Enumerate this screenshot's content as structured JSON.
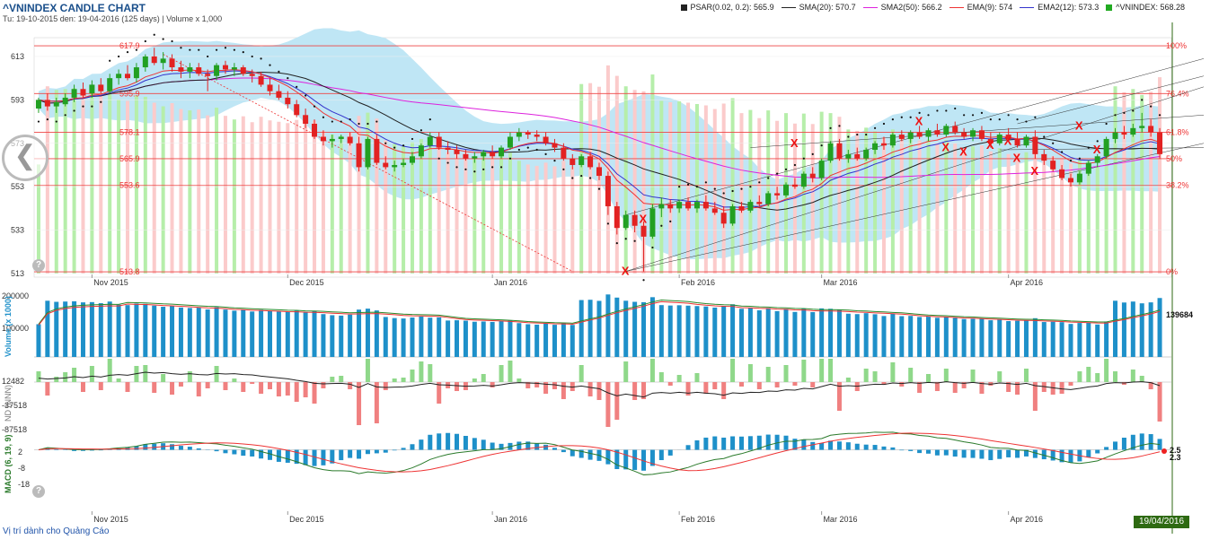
{
  "header": {
    "title": "^VNINDEX CANDLE CHART",
    "subtitle": "Tu: 19-10-2015 den: 19-04-2016 (125 days) | Volume x 1,000"
  },
  "legend": [
    {
      "name": "PSAR(0.02, 0.2): 565.9",
      "color": "#222222",
      "kind": "square"
    },
    {
      "name": "SMA(20): 570.7",
      "color": "#222222",
      "kind": "line"
    },
    {
      "name": "SMA2(50): 566.2",
      "color": "#dd22dd",
      "kind": "line"
    },
    {
      "name": "EMA(9): 574",
      "color": "#ee3333",
      "kind": "line"
    },
    {
      "name": "EMA2(12): 573.3",
      "color": "#3333cc",
      "kind": "line"
    },
    {
      "name": "^VNINDEX: 568.28",
      "color": "#22aa22",
      "kind": "square"
    }
  ],
  "footer": "Vị trí dành cho Quảng Cáo",
  "date_badge": "19/04/2016",
  "nav_glyph": "❮",
  "help_glyph": "?",
  "chart_data": [
    {
      "type": "candlestick",
      "name": "price",
      "y_ticks": [
        513,
        533,
        553,
        573,
        593,
        613
      ],
      "ylim": [
        513,
        620
      ],
      "x_ticks": [
        "Nov 2015",
        "Dec 2015",
        "Jan 2016",
        "Feb 2016",
        "Mar 2016",
        "Apr 2016"
      ],
      "fib_levels": [
        {
          "v": 617.9,
          "label": "617.9",
          "pct": "100%"
        },
        {
          "v": 595.9,
          "label": "595.9",
          "pct": "76.4%"
        },
        {
          "v": 578.1,
          "label": "578.1",
          "pct": "61.8%"
        },
        {
          "v": 565.9,
          "label": "565.9",
          "pct": "50%"
        },
        {
          "v": 553.6,
          "label": "553.6",
          "pct": "38.2%"
        },
        {
          "v": 513.8,
          "label": "513.8",
          "pct": "0%"
        }
      ],
      "candles": [
        {
          "o": 589,
          "h": 594,
          "l": 587,
          "c": 593
        },
        {
          "o": 593,
          "h": 596,
          "l": 588,
          "c": 590
        },
        {
          "o": 590,
          "h": 594,
          "l": 587,
          "c": 592
        },
        {
          "o": 591,
          "h": 596,
          "l": 590,
          "c": 594
        },
        {
          "o": 594,
          "h": 600,
          "l": 592,
          "c": 598
        },
        {
          "o": 598,
          "h": 601,
          "l": 594,
          "c": 595
        },
        {
          "o": 596,
          "h": 602,
          "l": 594,
          "c": 600
        },
        {
          "o": 600,
          "h": 603,
          "l": 596,
          "c": 597
        },
        {
          "o": 597,
          "h": 605,
          "l": 596,
          "c": 603
        },
        {
          "o": 603,
          "h": 607,
          "l": 600,
          "c": 605
        },
        {
          "o": 605,
          "h": 609,
          "l": 602,
          "c": 603
        },
        {
          "o": 603,
          "h": 610,
          "l": 601,
          "c": 608
        },
        {
          "o": 608,
          "h": 614,
          "l": 606,
          "c": 613
        },
        {
          "o": 613,
          "h": 617,
          "l": 609,
          "c": 610
        },
        {
          "o": 610,
          "h": 615,
          "l": 607,
          "c": 612
        },
        {
          "o": 612,
          "h": 614,
          "l": 606,
          "c": 608
        },
        {
          "o": 608,
          "h": 611,
          "l": 603,
          "c": 606
        },
        {
          "o": 606,
          "h": 610,
          "l": 603,
          "c": 608
        },
        {
          "o": 608,
          "h": 610,
          "l": 604,
          "c": 605
        },
        {
          "o": 605,
          "h": 607,
          "l": 597,
          "c": 604
        },
        {
          "o": 604,
          "h": 610,
          "l": 602,
          "c": 609
        },
        {
          "o": 609,
          "h": 611,
          "l": 605,
          "c": 607
        },
        {
          "o": 607,
          "h": 610,
          "l": 604,
          "c": 608
        },
        {
          "o": 608,
          "h": 609,
          "l": 604,
          "c": 605
        },
        {
          "o": 605,
          "h": 607,
          "l": 601,
          "c": 604
        },
        {
          "o": 604,
          "h": 606,
          "l": 599,
          "c": 600
        },
        {
          "o": 600,
          "h": 603,
          "l": 595,
          "c": 597
        },
        {
          "o": 597,
          "h": 600,
          "l": 593,
          "c": 594
        },
        {
          "o": 594,
          "h": 597,
          "l": 589,
          "c": 591
        },
        {
          "o": 591,
          "h": 593,
          "l": 585,
          "c": 586
        },
        {
          "o": 586,
          "h": 589,
          "l": 580,
          "c": 582
        },
        {
          "o": 582,
          "h": 584,
          "l": 575,
          "c": 576
        },
        {
          "o": 576,
          "h": 579,
          "l": 572,
          "c": 574
        },
        {
          "o": 574,
          "h": 577,
          "l": 571,
          "c": 575
        },
        {
          "o": 575,
          "h": 577,
          "l": 573,
          "c": 576
        },
        {
          "o": 576,
          "h": 578,
          "l": 572,
          "c": 573
        },
        {
          "o": 573,
          "h": 576,
          "l": 560,
          "c": 562
        },
        {
          "o": 562,
          "h": 576,
          "l": 561,
          "c": 575
        },
        {
          "o": 575,
          "h": 577,
          "l": 563,
          "c": 564
        },
        {
          "o": 564,
          "h": 567,
          "l": 561,
          "c": 562
        },
        {
          "o": 562,
          "h": 565,
          "l": 560,
          "c": 563
        },
        {
          "o": 563,
          "h": 566,
          "l": 562,
          "c": 564
        },
        {
          "o": 564,
          "h": 569,
          "l": 563,
          "c": 567
        },
        {
          "o": 567,
          "h": 573,
          "l": 566,
          "c": 572
        },
        {
          "o": 572,
          "h": 578,
          "l": 571,
          "c": 576
        },
        {
          "o": 576,
          "h": 578,
          "l": 570,
          "c": 571
        },
        {
          "o": 571,
          "h": 574,
          "l": 568,
          "c": 570
        },
        {
          "o": 570,
          "h": 572,
          "l": 566,
          "c": 568
        },
        {
          "o": 568,
          "h": 570,
          "l": 565,
          "c": 566
        },
        {
          "o": 566,
          "h": 569,
          "l": 564,
          "c": 567
        },
        {
          "o": 567,
          "h": 570,
          "l": 565,
          "c": 569
        },
        {
          "o": 569,
          "h": 572,
          "l": 566,
          "c": 567
        },
        {
          "o": 567,
          "h": 572,
          "l": 566,
          "c": 571
        },
        {
          "o": 571,
          "h": 578,
          "l": 570,
          "c": 576
        },
        {
          "o": 576,
          "h": 580,
          "l": 574,
          "c": 578
        },
        {
          "o": 578,
          "h": 579,
          "l": 575,
          "c": 577
        },
        {
          "o": 577,
          "h": 579,
          "l": 574,
          "c": 576
        },
        {
          "o": 576,
          "h": 578,
          "l": 572,
          "c": 573
        },
        {
          "o": 573,
          "h": 575,
          "l": 569,
          "c": 571
        },
        {
          "o": 571,
          "h": 573,
          "l": 565,
          "c": 566
        },
        {
          "o": 566,
          "h": 568,
          "l": 561,
          "c": 563
        },
        {
          "o": 563,
          "h": 568,
          "l": 562,
          "c": 567
        },
        {
          "o": 567,
          "h": 569,
          "l": 561,
          "c": 562
        },
        {
          "o": 562,
          "h": 564,
          "l": 556,
          "c": 558
        },
        {
          "o": 558,
          "h": 560,
          "l": 540,
          "c": 544
        },
        {
          "o": 544,
          "h": 546,
          "l": 531,
          "c": 534
        },
        {
          "o": 534,
          "h": 542,
          "l": 533,
          "c": 540
        },
        {
          "o": 540,
          "h": 542,
          "l": 532,
          "c": 535
        },
        {
          "o": 535,
          "h": 537,
          "l": 514,
          "c": 530
        },
        {
          "o": 530,
          "h": 545,
          "l": 529,
          "c": 543
        },
        {
          "o": 543,
          "h": 548,
          "l": 539,
          "c": 545
        },
        {
          "o": 545,
          "h": 547,
          "l": 541,
          "c": 543
        },
        {
          "o": 543,
          "h": 547,
          "l": 541,
          "c": 546
        },
        {
          "o": 546,
          "h": 548,
          "l": 542,
          "c": 543
        },
        {
          "o": 543,
          "h": 547,
          "l": 541,
          "c": 546
        },
        {
          "o": 546,
          "h": 549,
          "l": 542,
          "c": 543
        },
        {
          "o": 543,
          "h": 546,
          "l": 540,
          "c": 541
        },
        {
          "o": 541,
          "h": 544,
          "l": 534,
          "c": 536
        },
        {
          "o": 536,
          "h": 545,
          "l": 535,
          "c": 544
        },
        {
          "o": 544,
          "h": 546,
          "l": 541,
          "c": 542
        },
        {
          "o": 542,
          "h": 547,
          "l": 541,
          "c": 546
        },
        {
          "o": 546,
          "h": 549,
          "l": 544,
          "c": 545
        },
        {
          "o": 545,
          "h": 551,
          "l": 544,
          "c": 550
        },
        {
          "o": 550,
          "h": 553,
          "l": 547,
          "c": 549
        },
        {
          "o": 549,
          "h": 555,
          "l": 548,
          "c": 554
        },
        {
          "o": 554,
          "h": 557,
          "l": 552,
          "c": 553
        },
        {
          "o": 553,
          "h": 560,
          "l": 552,
          "c": 559
        },
        {
          "o": 559,
          "h": 562,
          "l": 555,
          "c": 557
        },
        {
          "o": 557,
          "h": 566,
          "l": 556,
          "c": 565
        },
        {
          "o": 565,
          "h": 574,
          "l": 564,
          "c": 573
        },
        {
          "o": 573,
          "h": 575,
          "l": 565,
          "c": 566
        },
        {
          "o": 566,
          "h": 570,
          "l": 564,
          "c": 568
        },
        {
          "o": 568,
          "h": 571,
          "l": 565,
          "c": 566
        },
        {
          "o": 566,
          "h": 571,
          "l": 565,
          "c": 570
        },
        {
          "o": 570,
          "h": 574,
          "l": 568,
          "c": 573
        },
        {
          "o": 573,
          "h": 576,
          "l": 570,
          "c": 572
        },
        {
          "o": 572,
          "h": 578,
          "l": 571,
          "c": 577
        },
        {
          "o": 577,
          "h": 579,
          "l": 574,
          "c": 575
        },
        {
          "o": 575,
          "h": 579,
          "l": 573,
          "c": 578
        },
        {
          "o": 578,
          "h": 581,
          "l": 575,
          "c": 576
        },
        {
          "o": 576,
          "h": 580,
          "l": 574,
          "c": 579
        },
        {
          "o": 579,
          "h": 582,
          "l": 576,
          "c": 577
        },
        {
          "o": 577,
          "h": 582,
          "l": 576,
          "c": 581
        },
        {
          "o": 581,
          "h": 583,
          "l": 577,
          "c": 578
        },
        {
          "o": 578,
          "h": 580,
          "l": 575,
          "c": 576
        },
        {
          "o": 576,
          "h": 580,
          "l": 574,
          "c": 579
        },
        {
          "o": 579,
          "h": 581,
          "l": 574,
          "c": 575
        },
        {
          "o": 575,
          "h": 578,
          "l": 571,
          "c": 573
        },
        {
          "o": 573,
          "h": 578,
          "l": 572,
          "c": 577
        },
        {
          "o": 577,
          "h": 580,
          "l": 574,
          "c": 575
        },
        {
          "o": 575,
          "h": 578,
          "l": 571,
          "c": 572
        },
        {
          "o": 572,
          "h": 577,
          "l": 571,
          "c": 576
        },
        {
          "o": 576,
          "h": 579,
          "l": 566,
          "c": 568
        },
        {
          "o": 568,
          "h": 570,
          "l": 563,
          "c": 565
        },
        {
          "o": 565,
          "h": 567,
          "l": 560,
          "c": 561
        },
        {
          "o": 561,
          "h": 563,
          "l": 556,
          "c": 557
        },
        {
          "o": 557,
          "h": 559,
          "l": 553,
          "c": 555
        },
        {
          "o": 555,
          "h": 560,
          "l": 554,
          "c": 559
        },
        {
          "o": 559,
          "h": 565,
          "l": 558,
          "c": 564
        },
        {
          "o": 564,
          "h": 568,
          "l": 562,
          "c": 567
        },
        {
          "o": 567,
          "h": 576,
          "l": 566,
          "c": 575
        },
        {
          "o": 575,
          "h": 580,
          "l": 573,
          "c": 578
        },
        {
          "o": 578,
          "h": 581,
          "l": 575,
          "c": 577
        },
        {
          "o": 577,
          "h": 582,
          "l": 576,
          "c": 580
        },
        {
          "o": 580,
          "h": 587,
          "l": 578,
          "c": 581
        },
        {
          "o": 581,
          "h": 584,
          "l": 576,
          "c": 578
        },
        {
          "o": 578,
          "h": 580,
          "l": 566,
          "c": 568
        }
      ]
    },
    {
      "type": "bar",
      "name": "Volume (x 1000)",
      "y_ticks": [
        "200000",
        "100000"
      ],
      "last_value": "139684",
      "ylim": [
        0,
        230000
      ]
    },
    {
      "type": "bar",
      "name": "ND (NNN)",
      "y_ticks": [
        "12482",
        "-37518",
        "-87518"
      ]
    },
    {
      "type": "bar",
      "name": "MACD (6, 19, 9)",
      "y_ticks": [
        "2",
        "-8",
        "-18"
      ],
      "last_values": [
        "2.5",
        "2.3"
      ],
      "ylim": [
        -20,
        6
      ]
    }
  ]
}
